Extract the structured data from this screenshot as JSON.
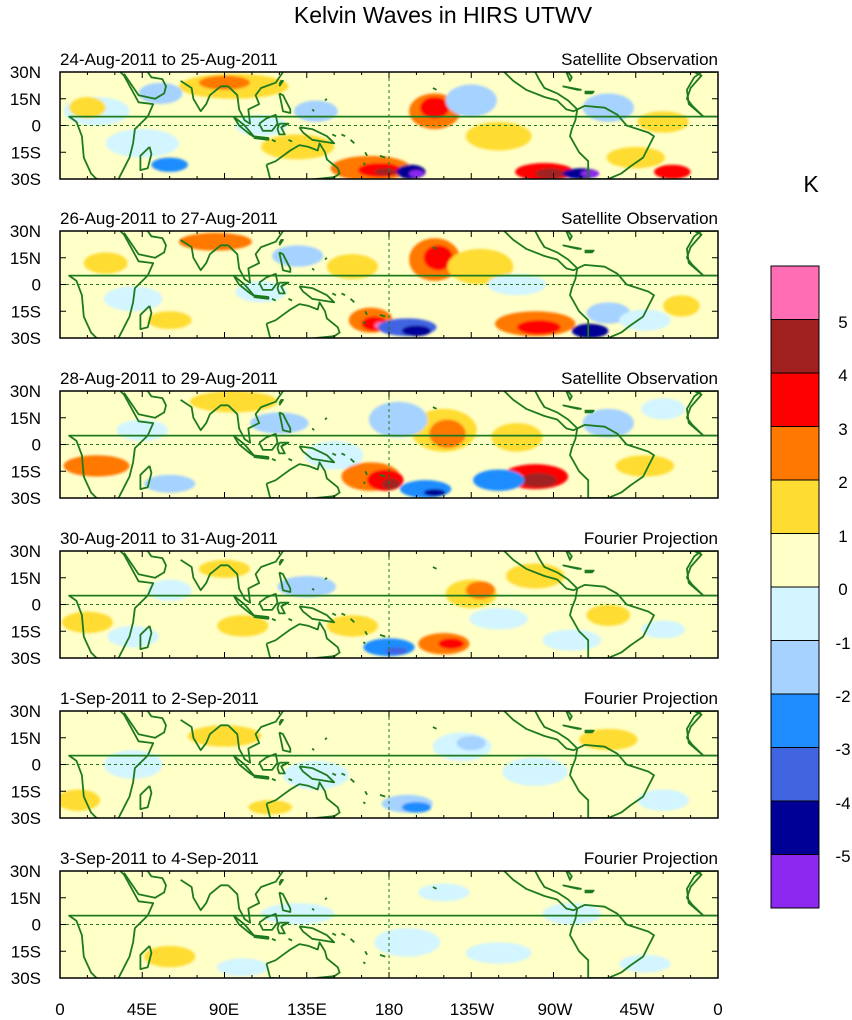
{
  "title": "Kelvin Waves in HIRS UTWV",
  "panels": [
    {
      "date_range": "24-Aug-2011 to 25-Aug-2011",
      "source": "Satellite Observation"
    },
    {
      "date_range": "26-Aug-2011 to 27-Aug-2011",
      "source": "Satellite Observation"
    },
    {
      "date_range": "28-Aug-2011 to 29-Aug-2011",
      "source": "Satellite Observation"
    },
    {
      "date_range": "30-Aug-2011 to 31-Aug-2011",
      "source": "Fourier Projection"
    },
    {
      "date_range": "1-Sep-2011 to 2-Sep-2011",
      "source": "Fourier Projection"
    },
    {
      "date_range": "3-Sep-2011 to 4-Sep-2011",
      "source": "Fourier Projection"
    }
  ],
  "lat_ticks": [
    "30N",
    "15N",
    "0",
    "15S",
    "30S"
  ],
  "lon_ticks": [
    "0",
    "45E",
    "90E",
    "135E",
    "180",
    "135W",
    "90W",
    "45W",
    "0"
  ],
  "colorbar": {
    "unit": "K",
    "labels": [
      "5",
      "4",
      "3",
      "2",
      "1",
      "0",
      "-1",
      "-2",
      "-3",
      "-4",
      "-5"
    ],
    "colors": [
      "#ff6eb4",
      "#a02020",
      "#ff0000",
      "#ff7800",
      "#ffdc32",
      "#ffffc8",
      "#d2f5ff",
      "#a5d2ff",
      "#1e8cff",
      "#4164e1",
      "#000096",
      "#8c28f0"
    ]
  },
  "colors": {
    "land_outline": "#1e7a1e",
    "frame": "#000000"
  }
}
